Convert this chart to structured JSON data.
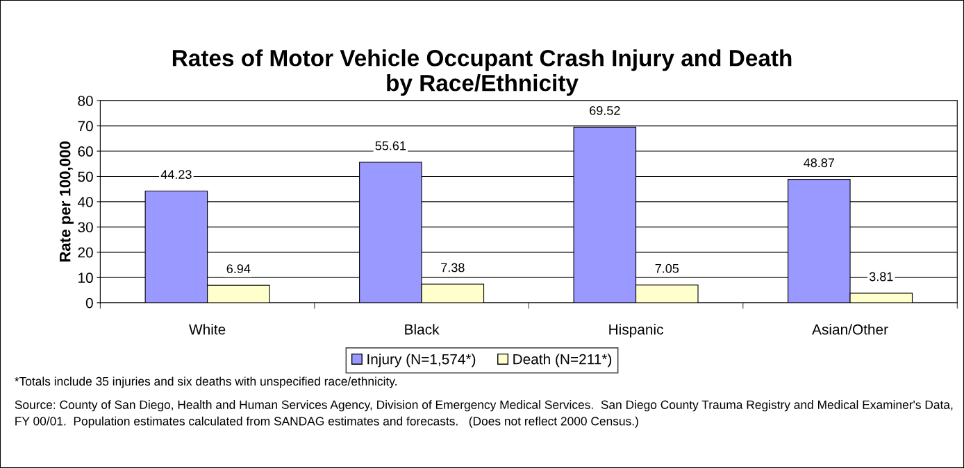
{
  "chart_data": {
    "type": "bar",
    "title": "Rates of Motor Vehicle Occupant Crash Injury and Death\nby Race/Ethnicity",
    "ylabel": "Rate per 100,000",
    "categories": [
      "White",
      "Black",
      "Hispanic",
      "Asian/Other"
    ],
    "series": [
      {
        "name": "Injury (N=1,574*)",
        "color": "#9999ff",
        "values": [
          44.23,
          55.61,
          69.52,
          48.87
        ]
      },
      {
        "name": "Death (N=211*)",
        "color": "#ffffcc",
        "values": [
          6.94,
          7.38,
          7.05,
          3.81
        ]
      }
    ],
    "ylim": [
      0,
      80
    ],
    "yticks": [
      0,
      10,
      20,
      30,
      40,
      50,
      60,
      70,
      80
    ],
    "grid": "y",
    "legend": "bottom",
    "data_labels": true,
    "annotations": [
      "*Totals include 35 injuries and six deaths with unspecified race/ethnicity.",
      "Source: County of San Diego, Health and Human Services Agency, Division of Emergency Medical Services.  San Diego County Trauma Registry and Medical Examiner's Data, FY 00/01.  Population estimates calculated from SANDAG estimates and forecasts.   (Does not reflect 2000 Census.)"
    ]
  }
}
